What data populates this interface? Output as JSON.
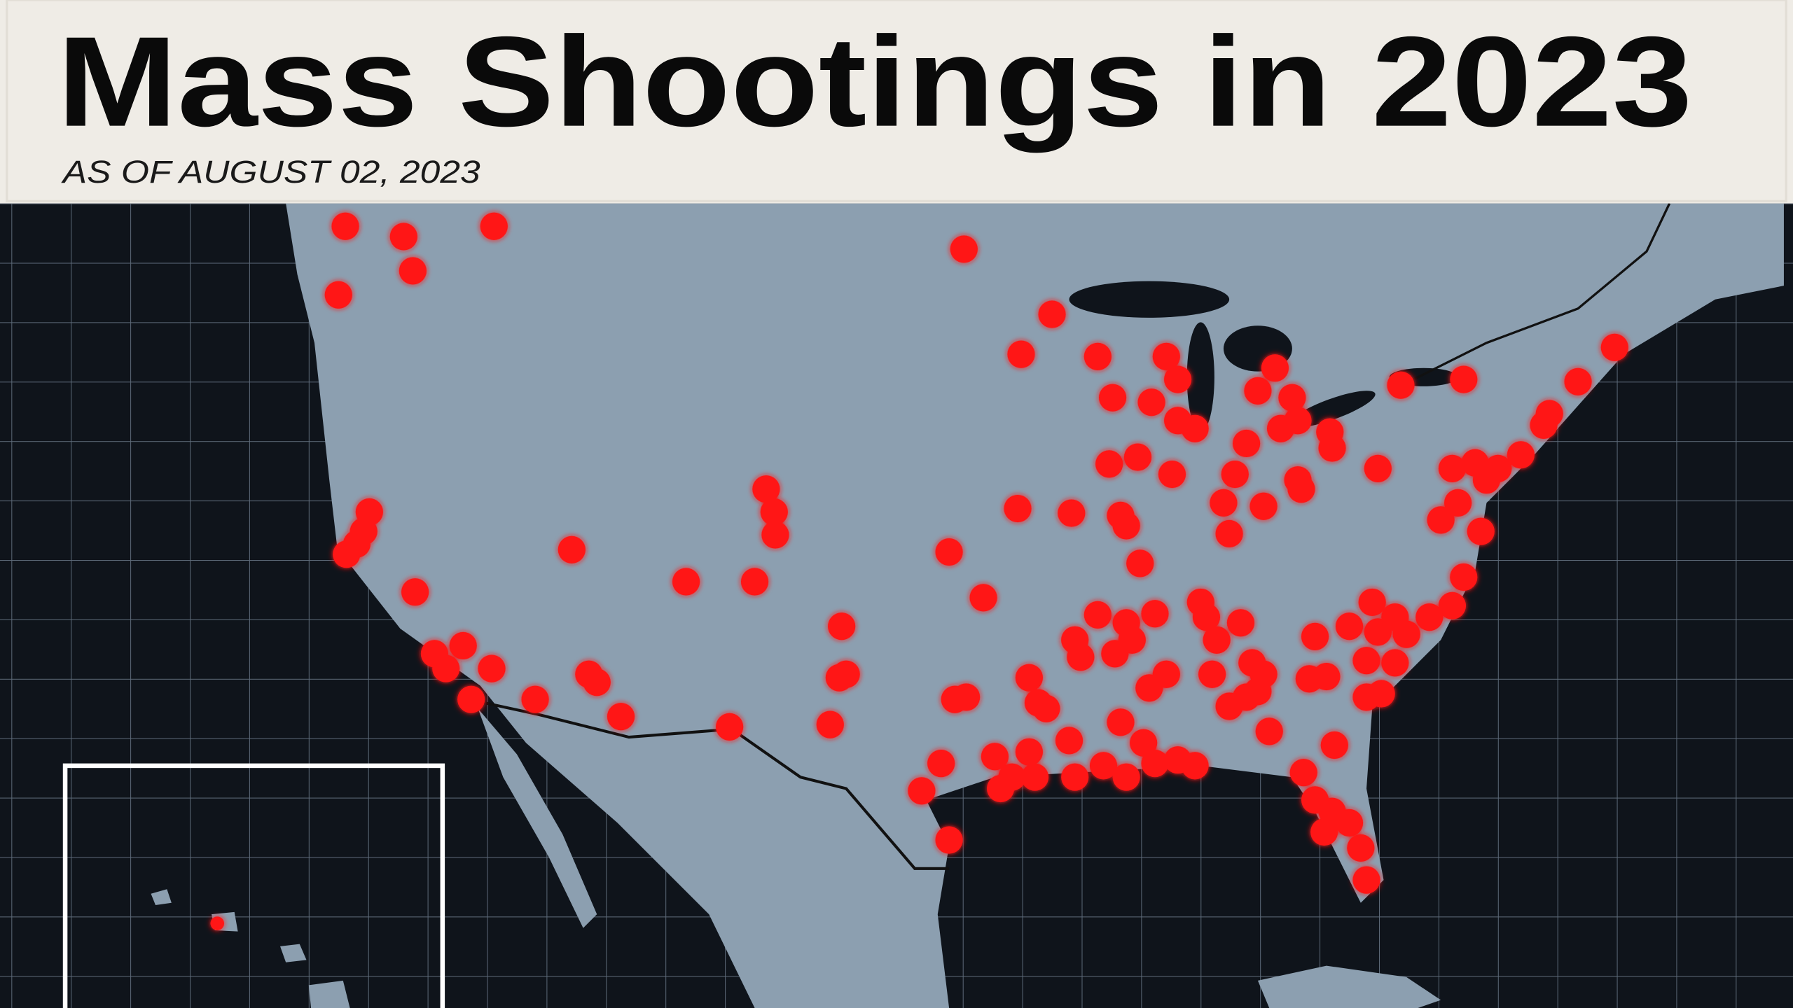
{
  "header": {
    "title": "Mass Shootings in 2023",
    "subtitle": "AS OF  AUGUST 02, 2023"
  }
}
